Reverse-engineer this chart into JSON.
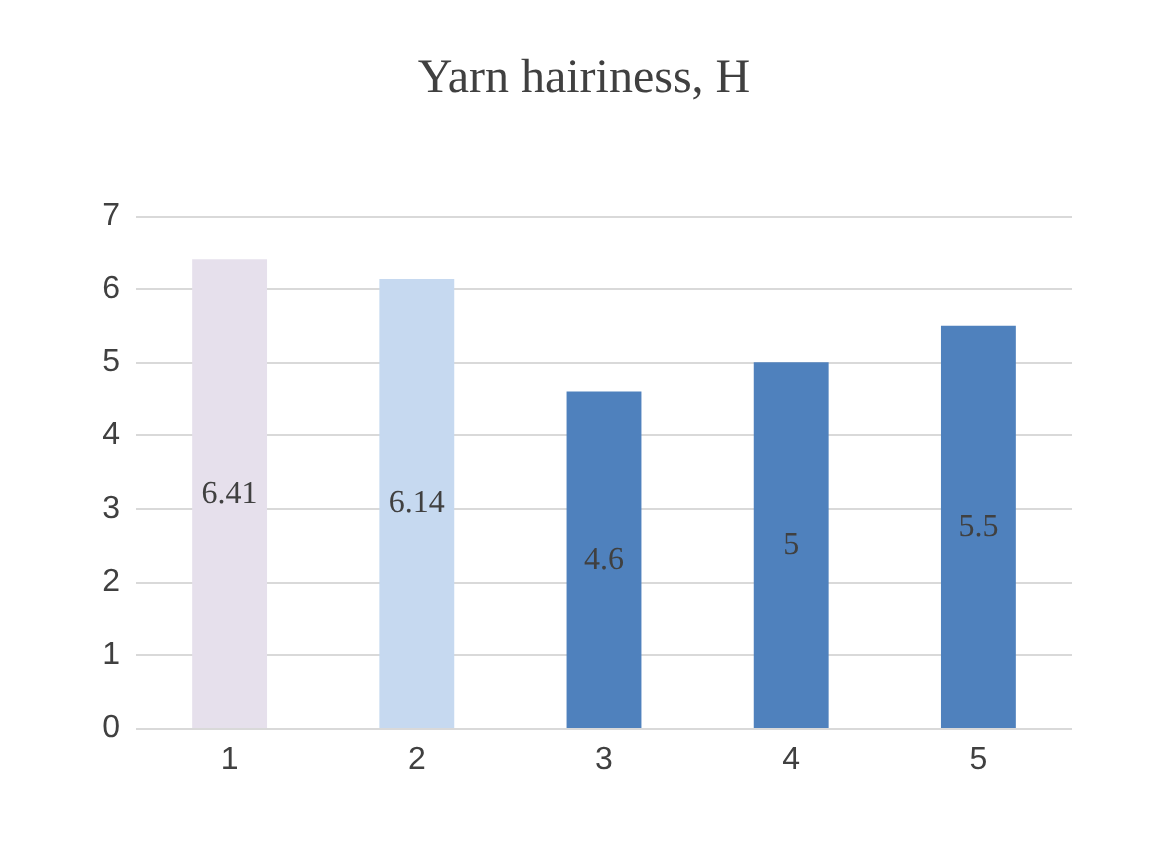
{
  "chart_data": {
    "type": "bar",
    "title": "Yarn hairiness, H",
    "categories": [
      "1",
      "2",
      "3",
      "4",
      "5"
    ],
    "values": [
      6.41,
      6.14,
      4.6,
      5,
      5.5
    ],
    "colors": [
      "#e6e0ec",
      "#c6d9f0",
      "#4f81bd",
      "#4f81bd",
      "#4f81bd"
    ],
    "ylim": [
      0,
      7
    ],
    "yticks": [
      0,
      1,
      2,
      3,
      4,
      5,
      6,
      7
    ],
    "grid": true,
    "data_labels": true
  }
}
